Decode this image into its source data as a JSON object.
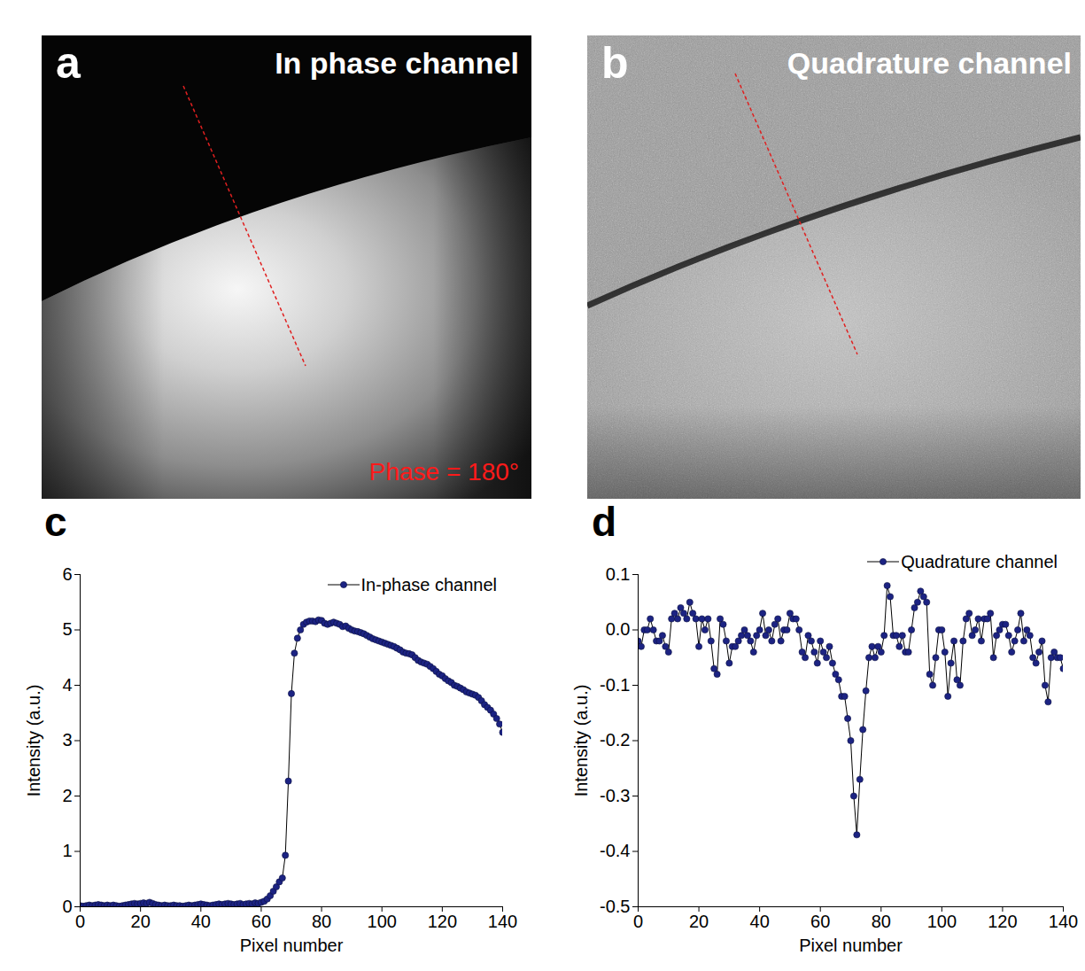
{
  "images": [
    {
      "panel": "a",
      "title": "In phase channel",
      "annotation": "Phase = 180°"
    },
    {
      "panel": "b",
      "title": "Quadrature channel"
    }
  ],
  "chart_data": [
    {
      "panel": "c",
      "type": "line",
      "x_label": "Pixel number",
      "y_label": "Intensity (a.u.)",
      "x": [
        0,
        1,
        2,
        3,
        4,
        5,
        6,
        7,
        8,
        9,
        10,
        11,
        12,
        13,
        14,
        15,
        16,
        17,
        18,
        19,
        20,
        21,
        22,
        23,
        24,
        25,
        26,
        27,
        28,
        29,
        30,
        31,
        32,
        33,
        34,
        35,
        36,
        37,
        38,
        39,
        40,
        41,
        42,
        43,
        44,
        45,
        46,
        47,
        48,
        49,
        50,
        51,
        52,
        53,
        54,
        55,
        56,
        57,
        58,
        59,
        60,
        61,
        62,
        63,
        64,
        65,
        66,
        67,
        68,
        69,
        70,
        71,
        72,
        73,
        74,
        75,
        76,
        77,
        78,
        79,
        80,
        81,
        82,
        83,
        84,
        85,
        86,
        87,
        88,
        89,
        90,
        91,
        92,
        93,
        94,
        95,
        96,
        97,
        98,
        99,
        100,
        101,
        102,
        103,
        104,
        105,
        106,
        107,
        108,
        109,
        110,
        111,
        112,
        113,
        114,
        115,
        116,
        117,
        118,
        119,
        120,
        121,
        122,
        123,
        124,
        125,
        126,
        127,
        128,
        129,
        130,
        131,
        132,
        133,
        134,
        135,
        136,
        137,
        138,
        139,
        140
      ],
      "series": [
        {
          "name": "In-phase channel",
          "color": "#1c2383",
          "marker": "circle",
          "values": [
            0.02,
            0.01,
            0.02,
            0.03,
            0.02,
            0.03,
            0.04,
            0.03,
            0.02,
            0.03,
            0.02,
            0.03,
            0.02,
            0.01,
            0.02,
            0.03,
            0.04,
            0.05,
            0.06,
            0.05,
            0.06,
            0.07,
            0.06,
            0.08,
            0.06,
            0.04,
            0.03,
            0.02,
            0.03,
            0.02,
            0.02,
            0.03,
            0.02,
            0.02,
            0.01,
            0.02,
            0.03,
            0.02,
            0.03,
            0.04,
            0.05,
            0.04,
            0.03,
            0.02,
            0.03,
            0.04,
            0.05,
            0.04,
            0.05,
            0.06,
            0.05,
            0.04,
            0.05,
            0.06,
            0.04,
            0.05,
            0.06,
            0.05,
            0.07,
            0.06,
            0.08,
            0.1,
            0.14,
            0.2,
            0.28,
            0.36,
            0.45,
            0.52,
            0.93,
            2.27,
            3.85,
            4.58,
            4.85,
            5.0,
            5.1,
            5.14,
            5.16,
            5.16,
            5.15,
            5.18,
            5.17,
            5.12,
            5.1,
            5.12,
            5.14,
            5.12,
            5.1,
            5.06,
            5.07,
            5.03,
            5.0,
            4.98,
            4.97,
            4.95,
            4.93,
            4.9,
            4.87,
            4.84,
            4.82,
            4.8,
            4.78,
            4.76,
            4.74,
            4.72,
            4.7,
            4.67,
            4.64,
            4.6,
            4.58,
            4.57,
            4.55,
            4.5,
            4.45,
            4.42,
            4.4,
            4.38,
            4.34,
            4.3,
            4.25,
            4.2,
            4.17,
            4.12,
            4.08,
            4.05,
            4.0,
            3.98,
            3.95,
            3.92,
            3.88,
            3.86,
            3.84,
            3.82,
            3.78,
            3.72,
            3.65,
            3.6,
            3.55,
            3.48,
            3.4,
            3.3,
            3.15
          ]
        }
      ],
      "xlim": [
        0,
        140
      ],
      "xticks": [
        0,
        20,
        40,
        60,
        80,
        100,
        120,
        140
      ],
      "ylim": [
        0,
        6
      ],
      "yticks": [
        0,
        1,
        2,
        3,
        4,
        5,
        6
      ],
      "legend": "top-right"
    },
    {
      "panel": "d",
      "type": "line",
      "x_label": "Pixel number",
      "y_label": "Intensity (a.u.)",
      "x": [
        0,
        1,
        2,
        3,
        4,
        5,
        6,
        7,
        8,
        9,
        10,
        11,
        12,
        13,
        14,
        15,
        16,
        17,
        18,
        19,
        20,
        21,
        22,
        23,
        24,
        25,
        26,
        27,
        28,
        29,
        30,
        31,
        32,
        33,
        34,
        35,
        36,
        37,
        38,
        39,
        40,
        41,
        42,
        43,
        44,
        45,
        46,
        47,
        48,
        49,
        50,
        51,
        52,
        53,
        54,
        55,
        56,
        57,
        58,
        59,
        60,
        61,
        62,
        63,
        64,
        65,
        66,
        67,
        68,
        69,
        70,
        71,
        72,
        73,
        74,
        75,
        76,
        77,
        78,
        79,
        80,
        81,
        82,
        83,
        84,
        85,
        86,
        87,
        88,
        89,
        90,
        91,
        92,
        93,
        94,
        95,
        96,
        97,
        98,
        99,
        100,
        101,
        102,
        103,
        104,
        105,
        106,
        107,
        108,
        109,
        110,
        111,
        112,
        113,
        114,
        115,
        116,
        117,
        118,
        119,
        120,
        121,
        122,
        123,
        124,
        125,
        126,
        127,
        128,
        129,
        130,
        131,
        132,
        133,
        134,
        135,
        136,
        137,
        138,
        139,
        140
      ],
      "series": [
        {
          "name": "Quadrature channel",
          "color": "#1c2383",
          "marker": "circle",
          "values": [
            -0.02,
            -0.03,
            0.0,
            0.0,
            0.02,
            0.0,
            -0.02,
            -0.02,
            -0.01,
            -0.03,
            -0.04,
            0.02,
            0.03,
            0.02,
            0.04,
            0.03,
            0.02,
            0.05,
            0.03,
            0.02,
            -0.03,
            0.02,
            0.0,
            0.02,
            -0.02,
            -0.07,
            -0.08,
            0.02,
            0.01,
            -0.02,
            -0.06,
            -0.03,
            -0.03,
            -0.02,
            -0.01,
            0.0,
            -0.01,
            -0.02,
            -0.04,
            -0.01,
            0.0,
            0.03,
            -0.01,
            0.0,
            -0.02,
            0.01,
            0.02,
            -0.02,
            0.0,
            0.0,
            0.03,
            0.02,
            0.02,
            0.0,
            -0.04,
            -0.05,
            -0.01,
            -0.02,
            -0.04,
            -0.06,
            -0.02,
            -0.04,
            -0.05,
            -0.03,
            -0.06,
            -0.08,
            -0.09,
            -0.12,
            -0.12,
            -0.16,
            -0.2,
            -0.3,
            -0.37,
            -0.27,
            -0.18,
            -0.11,
            -0.05,
            -0.03,
            -0.05,
            -0.03,
            -0.04,
            -0.01,
            0.08,
            0.06,
            -0.01,
            -0.01,
            -0.03,
            -0.01,
            -0.04,
            -0.04,
            0.0,
            0.04,
            0.05,
            0.07,
            0.06,
            0.05,
            -0.08,
            -0.1,
            -0.05,
            0.0,
            0.0,
            -0.04,
            -0.12,
            -0.06,
            -0.02,
            -0.09,
            -0.1,
            -0.02,
            0.02,
            0.03,
            -0.01,
            0.0,
            0.02,
            -0.02,
            0.02,
            0.02,
            0.03,
            -0.05,
            -0.01,
            0.0,
            0.01,
            0.01,
            -0.01,
            -0.04,
            -0.02,
            0.0,
            0.03,
            -0.02,
            0.0,
            -0.01,
            -0.05,
            -0.06,
            -0.04,
            -0.02,
            -0.1,
            -0.13,
            -0.05,
            -0.04,
            -0.05,
            -0.05,
            -0.07
          ]
        }
      ],
      "xlim": [
        0,
        140
      ],
      "xticks": [
        0,
        20,
        40,
        60,
        80,
        100,
        120,
        140
      ],
      "ylim": [
        -0.5,
        0.1
      ],
      "yticks": [
        -0.5,
        -0.4,
        -0.3,
        -0.2,
        -0.1,
        {
          "value": 0,
          "label": "0.0"
        },
        0.1
      ],
      "legend": "top-right"
    }
  ]
}
